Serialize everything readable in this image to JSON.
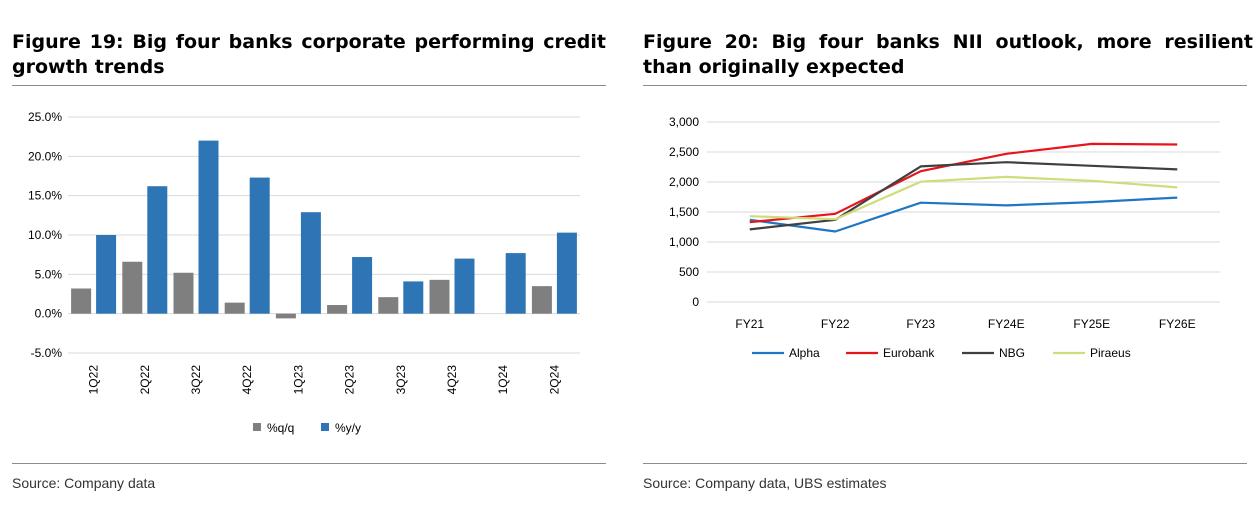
{
  "left": {
    "title": "Figure 19: Big four banks corporate performing credit growth trends",
    "source": "Source: Company data",
    "chart_data": {
      "type": "bar",
      "categories": [
        "1Q22",
        "2Q22",
        "3Q22",
        "4Q22",
        "1Q23",
        "2Q23",
        "3Q23",
        "4Q23",
        "1Q24",
        "2Q24"
      ],
      "series": [
        {
          "name": "%q/q",
          "color": "#7f7f7f",
          "values": [
            3.2,
            6.6,
            5.2,
            1.4,
            -0.6,
            1.1,
            2.1,
            4.3,
            0.0,
            3.5
          ]
        },
        {
          "name": "%y/y",
          "color": "#2e75b6",
          "values": [
            10.0,
            16.2,
            22.0,
            17.3,
            12.9,
            7.2,
            4.1,
            7.0,
            7.7,
            10.3
          ]
        }
      ],
      "ylim": [
        -5,
        25
      ],
      "yticks": [
        25,
        20,
        15,
        10,
        5,
        0,
        -5
      ],
      "ytick_labels": [
        "25.0%",
        "20.0%",
        "15.0%",
        "10.0%",
        "5.0%",
        "0.0%",
        "-5.0%"
      ],
      "legend_position": "bottom"
    }
  },
  "right": {
    "title": "Figure 20: Big four banks NII outlook, more resilient than originally expected",
    "source": "Source: Company data, UBS estimates",
    "chart_data": {
      "type": "line",
      "categories": [
        "FY21",
        "FY22",
        "FY23",
        "FY24E",
        "FY25E",
        "FY26E"
      ],
      "series": [
        {
          "name": "Alpha",
          "color": "#1f77c4",
          "values": [
            1370,
            1175,
            1655,
            1610,
            1665,
            1740
          ]
        },
        {
          "name": "Eurobank",
          "color": "#e8141b",
          "values": [
            1330,
            1470,
            2180,
            2470,
            2635,
            2625
          ]
        },
        {
          "name": "NBG",
          "color": "#404040",
          "values": [
            1210,
            1370,
            2260,
            2330,
            2270,
            2210
          ]
        },
        {
          "name": "Piraeus",
          "color": "#cfdc7a",
          "values": [
            1430,
            1380,
            2005,
            2085,
            2020,
            1910
          ]
        }
      ],
      "ylim": [
        0,
        3000
      ],
      "yticks": [
        3000,
        2500,
        2000,
        1500,
        1000,
        500,
        0
      ],
      "ytick_labels": [
        "3,000",
        "2,500",
        "2,000",
        "1,500",
        "1,000",
        "500",
        "0"
      ],
      "legend_position": "bottom"
    }
  }
}
